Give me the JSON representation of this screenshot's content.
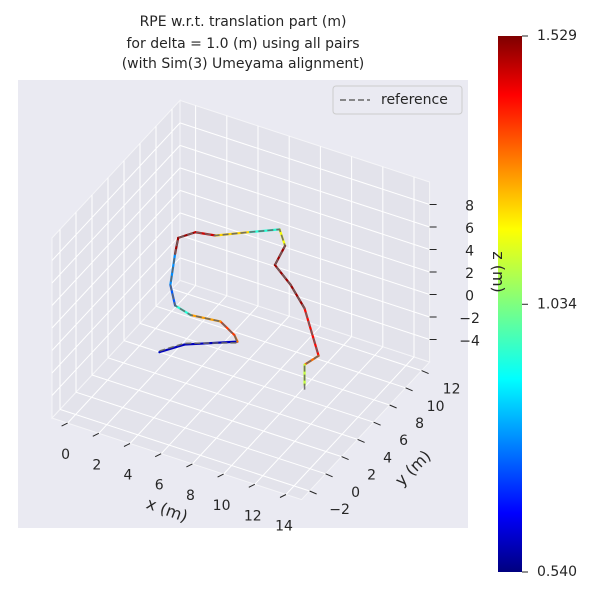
{
  "chart_data": {
    "type": "line3d",
    "title": [
      "RPE w.r.t. translation part (m)",
      "for delta = 1.0 (m) using all pairs",
      "(with Sim(3) Umeyama alignment)"
    ],
    "xlabel": "x (m)",
    "ylabel": "y (m)",
    "zlabel": "z (m)",
    "xlim": [
      -1,
      15
    ],
    "ylim": [
      -3,
      13
    ],
    "zlim": [
      -6,
      10
    ],
    "xticks": [
      0,
      2,
      4,
      6,
      8,
      10,
      12,
      14
    ],
    "yticks": [
      {
        "value": -2,
        "label": "−2"
      },
      0,
      2,
      4,
      6,
      8,
      10,
      12
    ],
    "zticks": [
      {
        "value": -4,
        "label": "−4"
      },
      {
        "value": -2,
        "label": "−2"
      },
      0,
      2,
      4,
      6,
      8
    ],
    "grid": true,
    "legend": "upper right",
    "series": [
      {
        "name": "reference",
        "color": "#666666",
        "x": [
          2.3,
          3.9,
          7.3,
          7.1,
          6.2,
          4.3,
          3.3,
          3.0,
          3.3,
          3.5,
          4.6,
          5.9,
          8.1,
          10.0,
          10.35,
          9.7,
          10.7,
          11.6,
          12.5,
          11.6,
          11.6
        ],
        "y": [
          4,
          4,
          4,
          4,
          4,
          4,
          4,
          4,
          4,
          4,
          4,
          4,
          4,
          4,
          4,
          4,
          4,
          4,
          4,
          4,
          4
        ],
        "z": [
          -3.9,
          -2.5,
          -0.9,
          -0.3,
          0.5,
          0.2,
          0.6,
          2.3,
          5.2,
          6.7,
          7.7,
          8.0,
          9.3,
          10.4,
          9.1,
          7.1,
          5.8,
          4.1,
          0.3,
          -0.9,
          -3.2
        ]
      }
    ],
    "trajectory": {
      "x": [
        2.3,
        3.9,
        7.3,
        7.1,
        6.2,
        4.3,
        3.3,
        3.0,
        3.3,
        3.5,
        4.6,
        5.9,
        8.1,
        10.0,
        10.35,
        9.7,
        10.7,
        11.6,
        12.5,
        11.6,
        11.6
      ],
      "y": [
        4,
        4,
        4,
        4,
        4,
        4,
        4,
        4,
        4,
        4,
        4,
        4,
        4,
        4,
        4,
        4,
        4,
        4,
        4,
        4,
        4
      ],
      "z": [
        -4.0,
        -2.6,
        -0.8,
        -0.3,
        0.5,
        0.2,
        0.6,
        2.3,
        5.2,
        6.7,
        7.7,
        8.0,
        9.3,
        10.4,
        9.1,
        7.1,
        5.8,
        4.1,
        0.3,
        -0.9,
        -2.7
      ],
      "values": [
        0.8,
        0.6,
        0.6,
        1.3,
        1.35,
        1.25,
        0.95,
        0.75,
        0.8,
        1.5,
        1.5,
        1.45,
        1.2,
        0.95,
        1.15,
        1.5,
        1.5,
        1.5,
        1.4,
        1.3,
        1.1
      ]
    },
    "colorbar": {
      "lim": [
        0.54,
        1.529
      ],
      "ticks": [
        {
          "value": 0.54,
          "label": "0.540"
        },
        1.034,
        1.529
      ]
    }
  }
}
